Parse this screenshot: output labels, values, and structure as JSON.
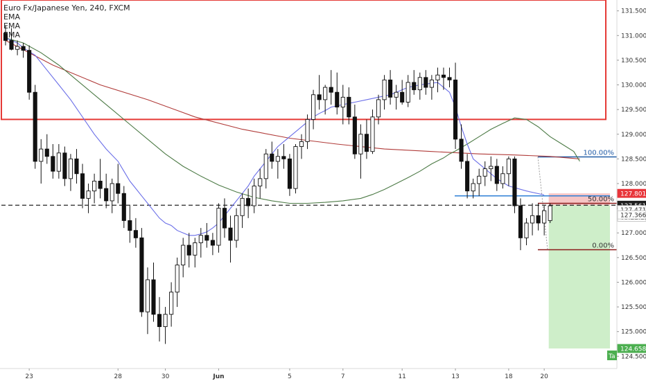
{
  "header": {
    "title": "Euro Fx/Japanese Yen, 240, FXCM",
    "indicators": [
      "EMA",
      "EMA",
      "EMA"
    ]
  },
  "chart_data": {
    "type": "candlestick",
    "instrument": "Euro Fx/Japanese Yen",
    "interval": "240",
    "source": "FXCM",
    "ylim": [
      124.42,
      131.72
    ],
    "y_ticks": [
      "131.500",
      "131.000",
      "130.500",
      "130.000",
      "129.500",
      "129.000",
      "128.500",
      "128.000",
      "127.500",
      "127.000",
      "126.500",
      "126.000",
      "125.500",
      "125.000",
      "124.500"
    ],
    "x_ticks": [
      "23",
      "28",
      "30",
      "Jun",
      "5",
      "7",
      "11",
      "13",
      "18",
      "20"
    ],
    "candles": [
      [
        131.05,
        131.2,
        130.8,
        130.9
      ],
      [
        130.9,
        131.15,
        130.7,
        130.72
      ],
      [
        130.72,
        130.9,
        130.6,
        130.78
      ],
      [
        130.78,
        130.85,
        130.55,
        130.7
      ],
      [
        130.7,
        130.8,
        129.7,
        129.85
      ],
      [
        129.85,
        130.0,
        128.3,
        128.45
      ],
      [
        128.45,
        128.9,
        128.0,
        128.7
      ],
      [
        128.7,
        129.0,
        128.4,
        128.55
      ],
      [
        128.55,
        128.8,
        128.1,
        128.25
      ],
      [
        128.25,
        128.8,
        128.1,
        128.62
      ],
      [
        128.62,
        128.75,
        127.95,
        128.1
      ],
      [
        128.1,
        128.6,
        127.85,
        128.5
      ],
      [
        128.5,
        128.7,
        128.0,
        128.2
      ],
      [
        128.2,
        128.4,
        127.5,
        127.7
      ],
      [
        127.7,
        128.0,
        127.4,
        127.85
      ],
      [
        127.85,
        128.2,
        127.6,
        128.05
      ],
      [
        128.05,
        128.5,
        127.7,
        127.9
      ],
      [
        127.9,
        128.2,
        127.5,
        127.65
      ],
      [
        127.65,
        128.1,
        127.4,
        128.0
      ],
      [
        128.0,
        128.4,
        127.6,
        127.8
      ],
      [
        127.8,
        127.95,
        127.1,
        127.25
      ],
      [
        127.25,
        127.55,
        126.8,
        127.05
      ],
      [
        127.05,
        127.3,
        126.7,
        126.9
      ],
      [
        126.9,
        127.1,
        125.3,
        125.4
      ],
      [
        125.4,
        126.3,
        124.95,
        126.05
      ],
      [
        126.05,
        126.4,
        125.2,
        125.35
      ],
      [
        125.35,
        125.7,
        124.8,
        125.1
      ],
      [
        125.1,
        125.5,
        124.75,
        125.35
      ],
      [
        125.35,
        126.0,
        125.1,
        125.8
      ],
      [
        125.8,
        126.5,
        125.5,
        126.35
      ],
      [
        126.35,
        126.9,
        126.1,
        126.75
      ],
      [
        126.75,
        127.0,
        126.3,
        126.55
      ],
      [
        126.55,
        126.9,
        126.3,
        126.8
      ],
      [
        126.8,
        127.1,
        126.5,
        126.95
      ],
      [
        126.95,
        127.2,
        126.7,
        126.85
      ],
      [
        126.85,
        127.0,
        126.55,
        126.75
      ],
      [
        126.75,
        127.6,
        126.6,
        127.5
      ],
      [
        127.5,
        127.7,
        126.9,
        127.1
      ],
      [
        127.1,
        127.35,
        126.4,
        126.85
      ],
      [
        126.85,
        127.5,
        126.7,
        127.35
      ],
      [
        127.35,
        127.8,
        127.1,
        127.7
      ],
      [
        127.7,
        127.9,
        127.3,
        127.55
      ],
      [
        127.55,
        128.1,
        127.4,
        127.95
      ],
      [
        127.95,
        128.3,
        127.7,
        128.1
      ],
      [
        128.1,
        128.7,
        127.9,
        128.6
      ],
      [
        128.6,
        128.85,
        128.3,
        128.45
      ],
      [
        128.45,
        128.7,
        128.1,
        128.55
      ],
      [
        128.55,
        128.8,
        128.3,
        128.5
      ],
      [
        128.5,
        128.6,
        127.75,
        127.9
      ],
      [
        127.9,
        128.8,
        127.8,
        128.75
      ],
      [
        128.75,
        129.0,
        128.5,
        128.85
      ],
      [
        128.85,
        129.4,
        128.7,
        129.3
      ],
      [
        129.3,
        129.9,
        129.1,
        129.8
      ],
      [
        129.8,
        130.2,
        129.5,
        129.7
      ],
      [
        129.7,
        130.0,
        129.4,
        129.95
      ],
      [
        129.95,
        130.3,
        129.6,
        129.85
      ],
      [
        129.85,
        130.25,
        129.4,
        129.55
      ],
      [
        129.55,
        130.0,
        129.2,
        129.75
      ],
      [
        129.75,
        129.95,
        129.2,
        129.35
      ],
      [
        129.35,
        129.6,
        128.5,
        128.6
      ],
      [
        128.6,
        129.2,
        128.1,
        129.0
      ],
      [
        129.0,
        129.3,
        128.5,
        128.65
      ],
      [
        128.65,
        129.5,
        128.6,
        129.35
      ],
      [
        129.35,
        129.8,
        129.2,
        129.7
      ],
      [
        129.7,
        130.2,
        129.5,
        130.1
      ],
      [
        130.1,
        130.3,
        129.6,
        129.75
      ],
      [
        129.75,
        130.0,
        129.5,
        129.85
      ],
      [
        129.85,
        130.1,
        129.6,
        129.65
      ],
      [
        129.65,
        130.2,
        129.55,
        130.05
      ],
      [
        130.05,
        130.3,
        129.8,
        129.9
      ],
      [
        129.9,
        130.25,
        129.7,
        130.15
      ],
      [
        130.15,
        130.3,
        129.8,
        129.95
      ],
      [
        129.95,
        130.2,
        129.7,
        130.1
      ],
      [
        130.1,
        130.35,
        129.85,
        130.2
      ],
      [
        130.2,
        130.35,
        129.9,
        130.15
      ],
      [
        130.15,
        130.35,
        129.95,
        130.1
      ],
      [
        130.1,
        130.45,
        128.7,
        128.9
      ],
      [
        128.9,
        129.2,
        128.3,
        128.45
      ],
      [
        128.45,
        128.6,
        127.7,
        127.85
      ],
      [
        127.85,
        128.1,
        127.7,
        128.0
      ],
      [
        128.0,
        128.3,
        127.75,
        128.15
      ],
      [
        128.15,
        128.45,
        127.95,
        128.3
      ],
      [
        128.3,
        128.55,
        128.05,
        128.35
      ],
      [
        128.35,
        128.5,
        127.85,
        128.0
      ],
      [
        128.0,
        128.35,
        127.9,
        128.2
      ],
      [
        128.2,
        128.55,
        127.95,
        128.5
      ],
      [
        128.5,
        128.55,
        127.4,
        127.55
      ],
      [
        127.55,
        127.7,
        126.65,
        126.9
      ],
      [
        126.9,
        127.3,
        126.75,
        127.2
      ],
      [
        127.2,
        127.6,
        126.95,
        127.35
      ],
      [
        127.35,
        127.6,
        127.05,
        127.2
      ],
      [
        127.2,
        127.55,
        126.95,
        127.45
      ],
      [
        127.25,
        127.6,
        127.2,
        127.55
      ]
    ],
    "x_tick_candle_index": [
      4,
      19,
      27,
      36,
      48,
      57,
      67,
      76,
      85,
      91
    ],
    "ema_fast": [
      130.95,
      130.9,
      130.85,
      130.75,
      130.6,
      130.3,
      130.0,
      129.7,
      129.35,
      129.0,
      128.7,
      128.45,
      128.25,
      128.05,
      127.9,
      127.75,
      127.6,
      127.45,
      127.3,
      127.2,
      127.15,
      127.05,
      127.0,
      126.95,
      126.95,
      126.98,
      127.02,
      127.1,
      127.2,
      127.35,
      127.5,
      127.65,
      127.8,
      127.95,
      128.15,
      128.3,
      128.45,
      128.6,
      128.75,
      128.85,
      128.95,
      129.05,
      129.15,
      129.25,
      129.35,
      129.42,
      129.48,
      129.55,
      129.6,
      129.65,
      129.7,
      129.75,
      129.8,
      129.85,
      129.9,
      129.95,
      130.0,
      130.05,
      129.85,
      129.55,
      129.15,
      128.8,
      128.5,
      128.3,
      128.1,
      127.95,
      127.85,
      127.77
    ],
    "ema_fast_x": [
      0,
      1,
      2,
      3,
      5,
      7,
      9,
      11,
      13,
      15,
      17,
      19,
      20,
      21,
      22,
      23,
      24,
      25,
      26,
      27,
      28,
      29,
      30,
      31,
      32,
      33,
      34,
      35,
      36,
      37,
      38,
      39,
      40,
      41,
      42,
      43,
      44,
      45,
      46,
      47,
      48,
      49,
      50,
      51,
      52,
      53,
      54,
      55,
      57,
      59,
      61,
      63,
      65,
      66,
      67,
      68,
      70,
      73,
      75,
      76,
      77,
      78,
      79,
      81,
      83,
      85,
      88,
      91
    ],
    "ema_mid": [
      130.95,
      130.85,
      130.65,
      130.4,
      130.1,
      129.8,
      129.5,
      129.2,
      128.9,
      128.6,
      128.35,
      128.15,
      127.97,
      127.83,
      127.72,
      127.65,
      127.6,
      127.6,
      127.62,
      127.65,
      127.7,
      127.78,
      127.88,
      128.0,
      128.12,
      128.25,
      128.4,
      128.52,
      128.6,
      128.66,
      128.8,
      128.95,
      129.1,
      129.22,
      129.33,
      129.3,
      129.15,
      128.95,
      128.8,
      128.65,
      128.45
    ],
    "ema_mid_x": [
      0,
      3,
      6,
      9,
      12,
      15,
      18,
      21,
      24,
      27,
      30,
      33,
      36,
      39,
      42,
      45,
      48,
      51,
      54,
      57,
      60,
      62,
      64,
      66,
      68,
      70,
      72,
      74,
      75,
      76,
      78,
      80,
      82,
      84,
      86,
      88,
      90,
      92,
      94,
      96,
      97
    ],
    "ema_slow": [
      130.9,
      130.4,
      130.0,
      129.7,
      129.35,
      129.1,
      128.92,
      128.8,
      128.7,
      128.65,
      128.6,
      128.58,
      128.55,
      128.5
    ],
    "ema_slow_x": [
      0,
      8,
      16,
      24,
      32,
      40,
      48,
      56,
      64,
      72,
      80,
      86,
      92,
      97
    ],
    "resistance_zone": {
      "top": 131.72,
      "bottom": 129.3,
      "start_index": 0
    },
    "horizontal_levels": [
      {
        "price": 127.561,
        "style": "dashed",
        "color": "#222222"
      },
      {
        "price": 127.75,
        "style": "solid",
        "color": "#2e7fd6"
      }
    ],
    "fibonacci": {
      "levels": [
        {
          "label": "100.00%",
          "price": 128.54
        },
        {
          "label": "50.00%",
          "price": 127.6
        },
        {
          "label": "0.00%",
          "price": 126.66
        }
      ]
    },
    "short_position": {
      "entry": 127.561,
      "stop": 127.801,
      "target": 124.658
    },
    "price_tags": [
      {
        "label": "127.801",
        "price": 127.801,
        "bg": "#e8353a",
        "fg": "#ffffff"
      },
      {
        "label": "127.561",
        "price": 127.561,
        "bg": "#1e1e1e",
        "fg": "#ffffff"
      },
      {
        "label": "127.471",
        "price": 127.471,
        "bg": "#ffffff",
        "fg": "#333333"
      },
      {
        "label": "03:22:25",
        "price": 127.32,
        "bg": "#ffffff",
        "fg": "#333333"
      },
      {
        "label": "127.366",
        "price": 127.366,
        "bg": "#ffffff",
        "fg": "#333333"
      },
      {
        "label": "124.658",
        "price": 124.658,
        "bg": "#4caf50",
        "fg": "#ffffff"
      }
    ],
    "corner_badge": "Ta",
    "colors": {
      "bull": "#ffffff",
      "bear": "#111111",
      "ema_fast": "#6a6ee8",
      "ema_mid": "#4c7a45",
      "ema_slow": "#b03a38",
      "zone": "#e53935",
      "fib_top": "#1f5aa5",
      "fib_bottom": "#8b1a1a",
      "stop_fill": "#f4b7b7",
      "target_fill": "#c9ecc3"
    }
  }
}
